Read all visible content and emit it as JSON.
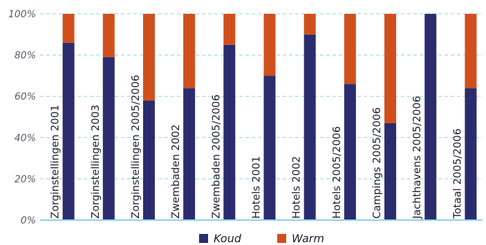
{
  "chart_data": {
    "type": "bar",
    "stacked": true,
    "percent": true,
    "categories": [
      "Zorginstellingen 2001",
      "Zorginstellingen 2003",
      "Zorginstellingen 2005/2006",
      "Zwembaden 2002",
      "Zwembaden 2005/2006",
      "Hotels 2001",
      "Hotels 2002",
      "Hotels 2005/2006",
      "Campings 2005/2006",
      "Jachthavens 2005/2006",
      "Totaal 2005/2006"
    ],
    "series": [
      {
        "name": "Koud",
        "color": "#2b2c6e",
        "values": [
          86,
          79,
          58,
          64,
          85,
          70,
          90,
          66,
          47,
          100,
          64
        ]
      },
      {
        "name": "Warm",
        "color": "#d0501d",
        "values": [
          14,
          21,
          42,
          36,
          15,
          30,
          10,
          34,
          53,
          0,
          36
        ]
      }
    ],
    "y_ticks": [
      "0%",
      "20%",
      "40%",
      "60%",
      "80%",
      "100%"
    ],
    "ylim": [
      0,
      100
    ],
    "grid": true,
    "legend_position": "bottom-center"
  }
}
